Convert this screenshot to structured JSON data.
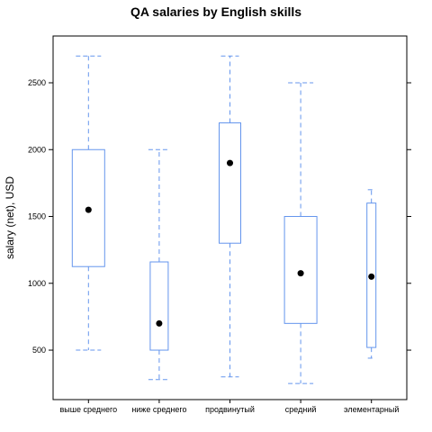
{
  "chart_data": {
    "type": "box",
    "title": "QA salaries by English skills",
    "xlabel": "",
    "ylabel": "salary (net), USD",
    "ylim": [
      130,
      2850
    ],
    "yticks": [
      500,
      1000,
      1500,
      2000,
      2500
    ],
    "box_color": "#6495ED",
    "median_color": "#000000",
    "categories": [
      "выше среднего",
      "ниже среднего",
      "продвинутый",
      "средний",
      "элементарный"
    ],
    "boxes": [
      {
        "category": "выше среднего",
        "whisker_low": 500,
        "q1": 1125,
        "median": 1550,
        "q3": 2000,
        "whisker_high": 2700
      },
      {
        "category": "ниже среднего",
        "whisker_low": 280,
        "q1": 500,
        "median": 700,
        "q3": 1160,
        "whisker_high": 2000
      },
      {
        "category": "продвинутый",
        "whisker_low": 300,
        "q1": 1300,
        "median": 1900,
        "q3": 2200,
        "whisker_high": 2700
      },
      {
        "category": "средний",
        "whisker_low": 250,
        "q1": 700,
        "median": 1075,
        "q3": 1500,
        "whisker_high": 2500
      },
      {
        "category": "элементарный",
        "whisker_low": 440,
        "q1": 520,
        "median": 1050,
        "q3": 1600,
        "whisker_high": 1700
      }
    ]
  }
}
